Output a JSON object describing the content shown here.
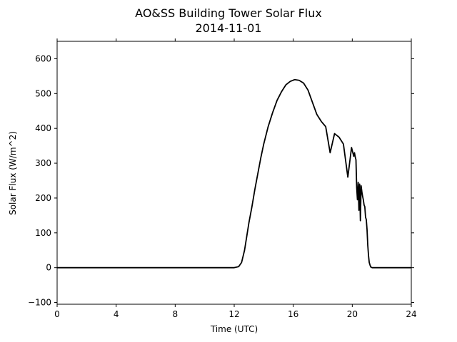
{
  "chart_data": {
    "type": "line",
    "title": "AO&SS Building Tower Solar Flux",
    "subtitle": "2014-11-01",
    "xlabel": "Time (UTC)",
    "ylabel": "Solar Flux (W/m^2)",
    "xlim": [
      0,
      24
    ],
    "ylim": [
      -105,
      650
    ],
    "xticks": [
      0,
      4,
      8,
      12,
      16,
      20,
      24
    ],
    "yticks": [
      -100,
      0,
      100,
      200,
      300,
      400,
      500,
      600
    ],
    "grid": false,
    "legend": "none",
    "series": [
      {
        "color": "#000000",
        "x": [
          0,
          12.0,
          12.3,
          12.5,
          12.7,
          12.85,
          13.0,
          13.2,
          13.4,
          13.6,
          13.8,
          14.0,
          14.3,
          14.6,
          14.9,
          15.2,
          15.5,
          15.8,
          16.1,
          16.4,
          16.7,
          17.0,
          17.3,
          17.6,
          17.9,
          18.2,
          18.5,
          18.8,
          19.1,
          19.4,
          19.7,
          19.95,
          20.1,
          20.15,
          20.2,
          20.25,
          20.3,
          20.35,
          20.4,
          20.45,
          20.5,
          20.55,
          20.6,
          20.65,
          20.7,
          20.75,
          20.8,
          20.85,
          20.9,
          20.95,
          21.0,
          21.05,
          21.1,
          21.15,
          21.2,
          21.25,
          21.35,
          21.5,
          21.65,
          21.75,
          21.85,
          22.0,
          22.2,
          22.4,
          22.55,
          22.7,
          23.0,
          23.3,
          24.0
        ],
        "y": [
          0,
          0,
          3,
          15,
          50,
          90,
          130,
          175,
          225,
          270,
          315,
          355,
          405,
          445,
          480,
          505,
          525,
          535,
          540,
          538,
          530,
          510,
          475,
          440,
          420,
          405,
          330,
          385,
          375,
          355,
          260,
          345,
          320,
          330,
          318,
          310,
          230,
          195,
          245,
          165,
          240,
          135,
          235,
          218,
          205,
          195,
          180,
          175,
          145,
          138,
          110,
          65,
          35,
          15,
          8,
          2,
          0,
          0,
          0,
          0,
          0,
          0,
          0,
          0,
          0,
          0,
          0,
          0,
          0
        ]
      }
    ]
  }
}
